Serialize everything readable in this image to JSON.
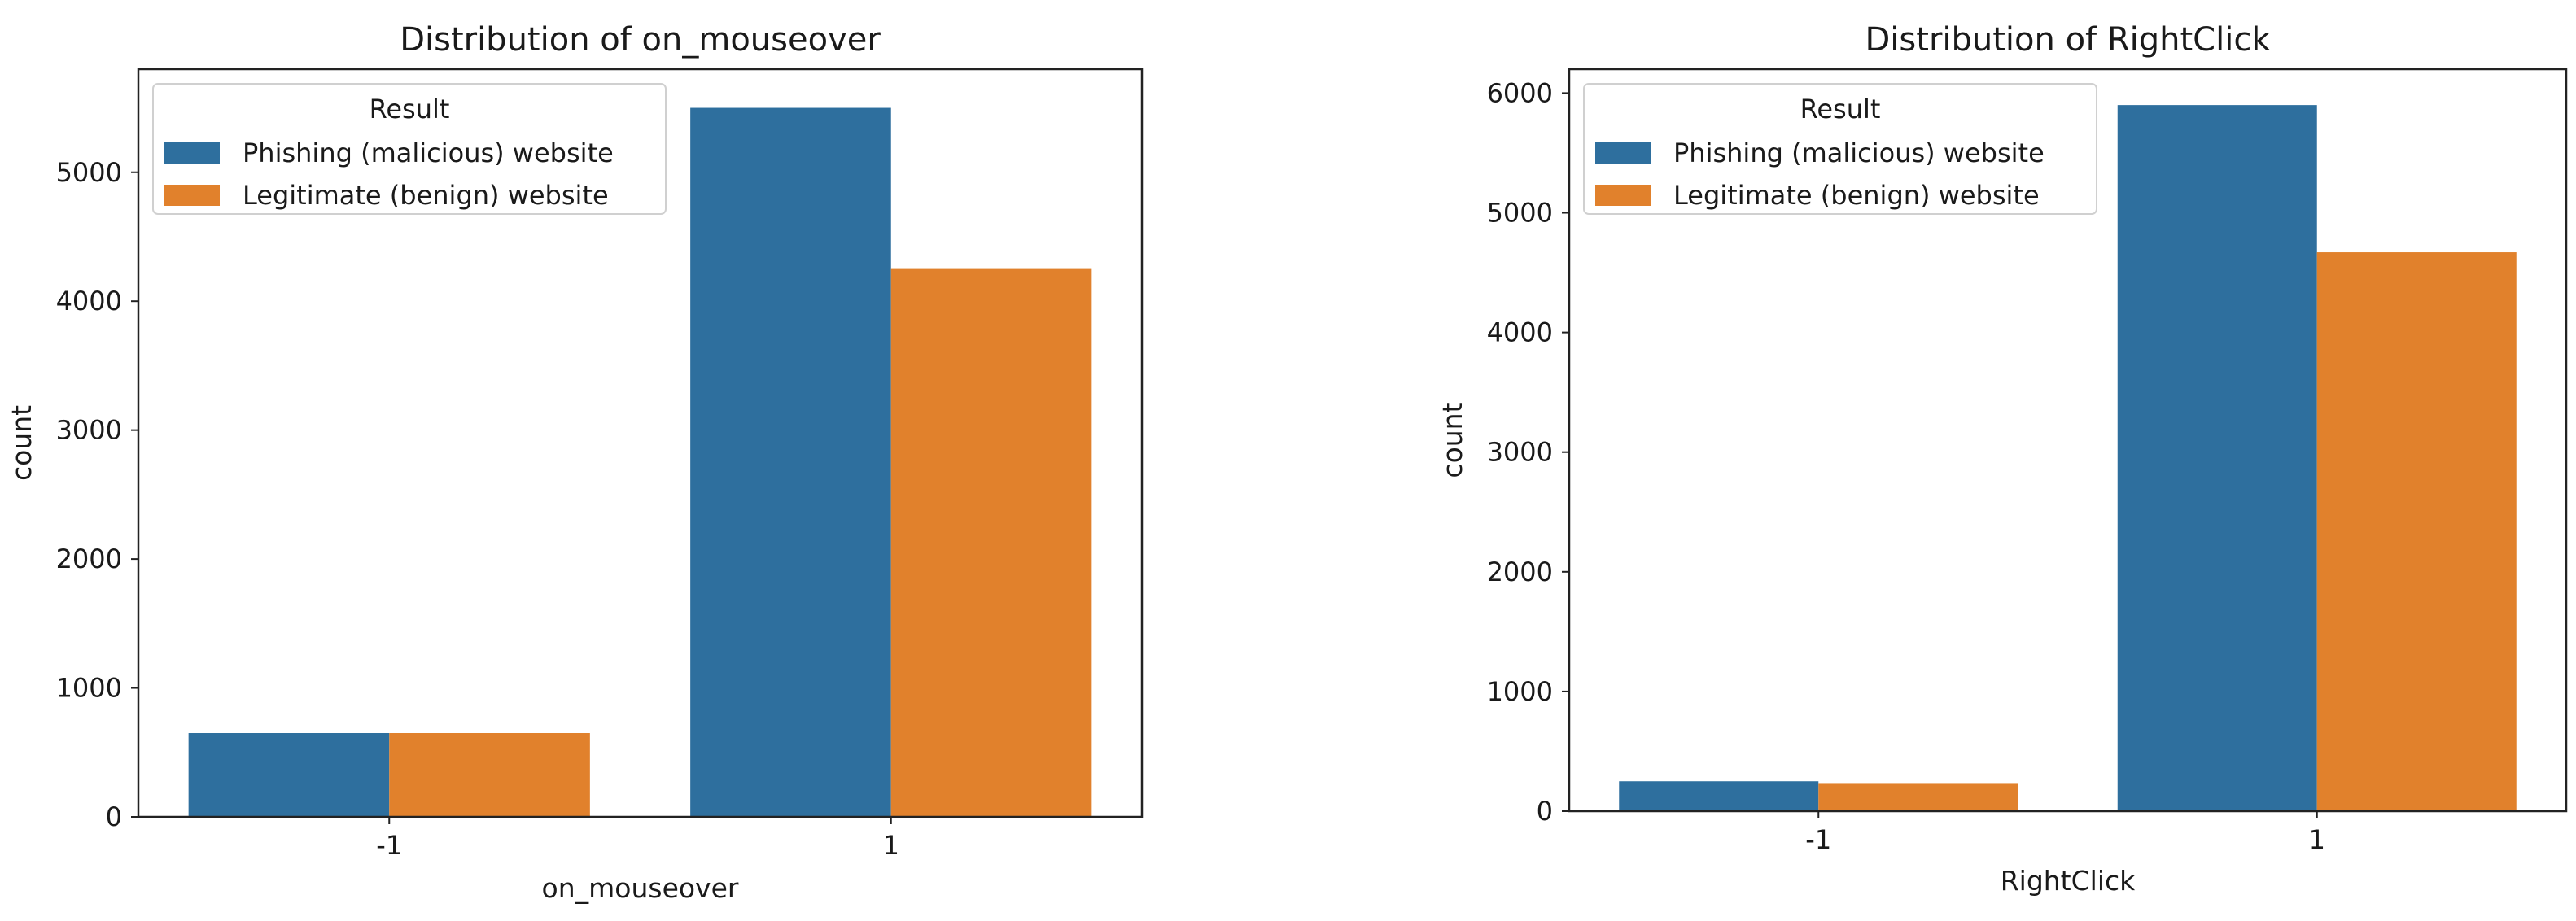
{
  "chart_data": [
    {
      "type": "bar",
      "title": "Distribution of on_mouseover",
      "xlabel": "on_mouseover",
      "ylabel": "count",
      "categories": [
        "-1",
        "1"
      ],
      "ylim": [
        0,
        5800
      ],
      "yticks": [
        0,
        1000,
        2000,
        3000,
        4000,
        5000
      ],
      "legend": {
        "title": "Result",
        "position": "top-left"
      },
      "series": [
        {
          "name": "Phishing (malicious) website",
          "color": "#2e6f9e",
          "values": [
            650,
            5500
          ]
        },
        {
          "name": "Legitimate (benign) website",
          "color": "#e1812c",
          "values": [
            650,
            4250
          ]
        }
      ]
    },
    {
      "type": "bar",
      "title": "Distribution of RightClick",
      "xlabel": "RightClick",
      "ylabel": "count",
      "categories": [
        "-1",
        "1"
      ],
      "ylim": [
        0,
        6200
      ],
      "yticks": [
        0,
        1000,
        2000,
        3000,
        4000,
        5000,
        6000
      ],
      "legend": {
        "title": "Result",
        "position": "top-left"
      },
      "series": [
        {
          "name": "Phishing (malicious) website",
          "color": "#2e6f9e",
          "values": [
            250,
            5900
          ]
        },
        {
          "name": "Legitimate (benign) website",
          "color": "#e1812c",
          "values": [
            235,
            4670
          ]
        }
      ]
    }
  ]
}
